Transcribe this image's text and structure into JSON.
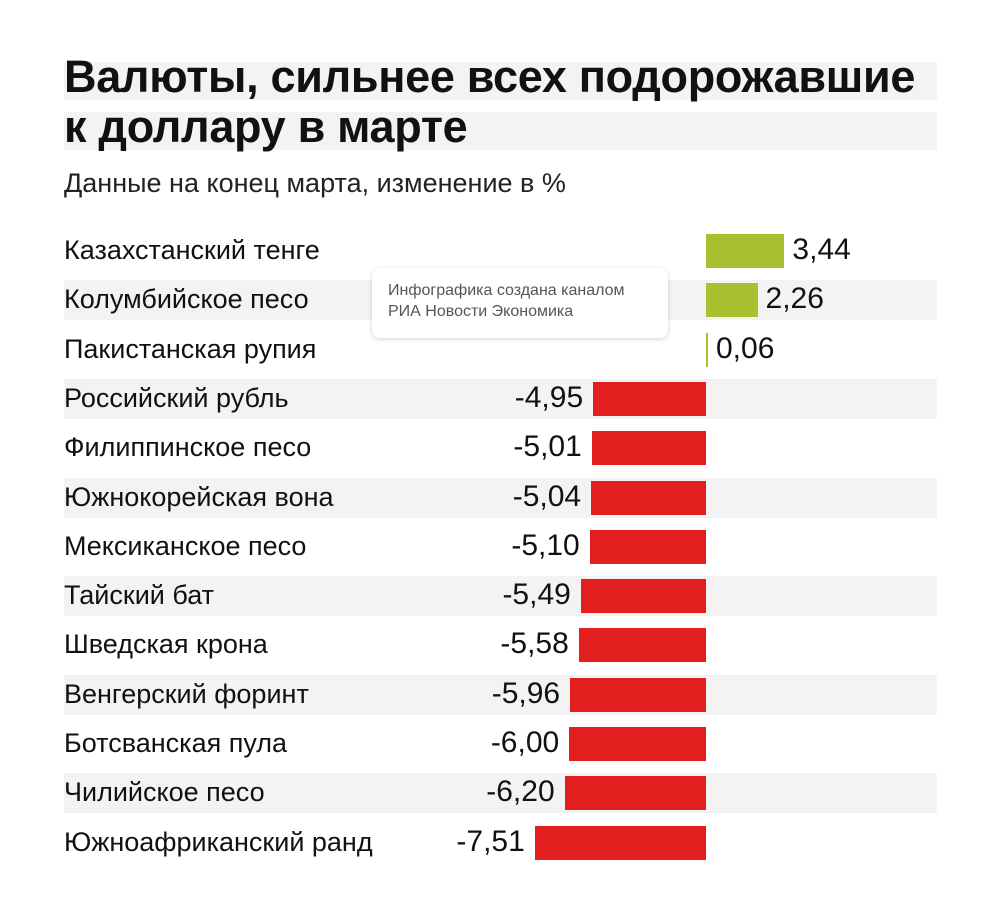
{
  "colors": {
    "positive": "#a9c131",
    "negative": "#e31e1e",
    "band": "#f3f3f3"
  },
  "tooltip": {
    "line1": "Инфографика создана каналом",
    "line2": "РИА Новости Экономика"
  },
  "chart_data": {
    "type": "bar",
    "orientation": "horizontal",
    "title": "Валюты, сильнее всех подорожавшие к доллару в марте",
    "title_lines": [
      "Валюты, сильнее всех подорожавшие",
      "к доллару в марте"
    ],
    "subtitle": "Данные на конец марта, изменение в %",
    "grid": false,
    "legend": "none",
    "categories": [
      "Казахстанский тенге",
      "Колумбийское песо",
      "Пакистанская рупия",
      "Российский рубль",
      "Филиппинское песо",
      "Южнокорейская вона",
      "Мексиканское песо",
      "Тайский бат",
      "Шведская крона",
      "Венгерский форинт",
      "Ботсванская пула",
      "Чилийское песо",
      "Южноафриканский ранд"
    ],
    "values": [
      3.44,
      2.26,
      0.06,
      -4.95,
      -5.01,
      -5.04,
      -5.1,
      -5.49,
      -5.58,
      -5.96,
      -6.0,
      -6.2,
      -7.51
    ],
    "value_labels": [
      "3,44",
      "2,26",
      "0,06",
      "-4,95",
      "-5,01",
      "-5,04",
      "-5,10",
      "-5,49",
      "-5,58",
      "-5,96",
      "-6,00",
      "-6,20",
      "-7,51"
    ],
    "xlim": [
      -7.51,
      3.44
    ]
  }
}
